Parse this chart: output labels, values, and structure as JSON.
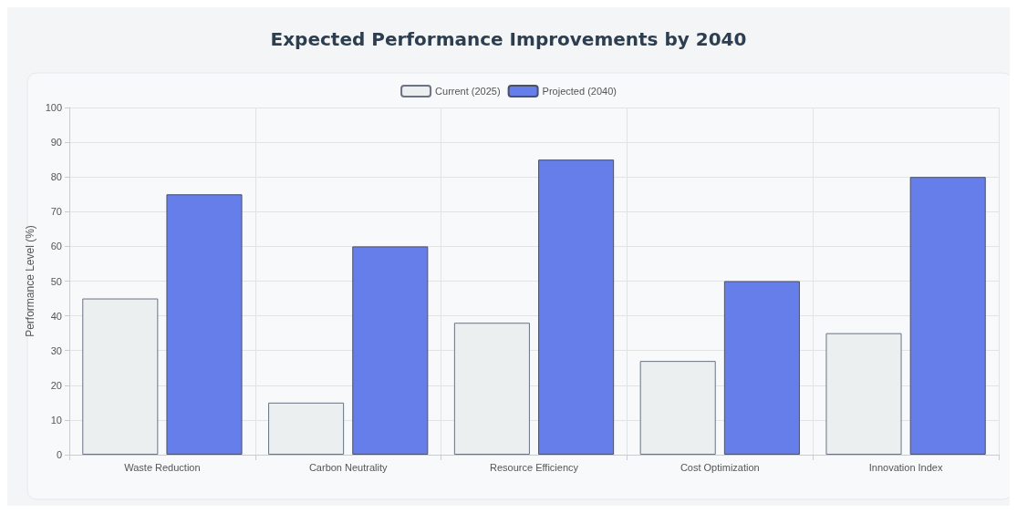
{
  "chart_data": {
    "type": "bar",
    "title": "Expected Performance Improvements by 2040",
    "ylabel": "Performance Level (%)",
    "categories": [
      "Waste Reduction",
      "Carbon Neutrality",
      "Resource Efficiency",
      "Cost Optimization",
      "Innovation Index"
    ],
    "series": [
      {
        "name": "Current (2025)",
        "color": "#eceff0",
        "values": [
          45,
          15,
          38,
          27,
          35
        ]
      },
      {
        "name": "Projected (2040)",
        "color": "#667eea",
        "values": [
          75,
          60,
          85,
          50,
          80
        ]
      }
    ],
    "ylim": [
      0,
      100
    ],
    "yticks": [
      0,
      10,
      20,
      30,
      40,
      50,
      60,
      70,
      80,
      90,
      100
    ],
    "grid": true,
    "legend": "top"
  }
}
